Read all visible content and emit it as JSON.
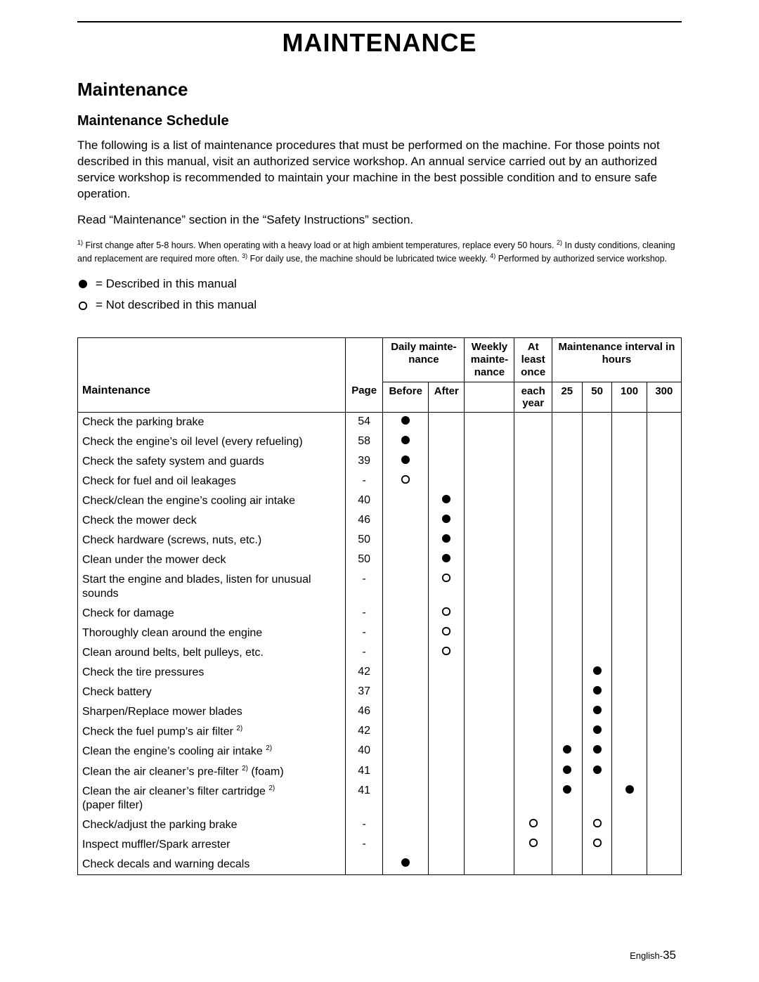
{
  "doc_title": "MAINTENANCE",
  "section_heading": "Maintenance",
  "sub_heading": "Maintenance Schedule",
  "intro_paragraph": "The following is a list of maintenance procedures that must be performed on the machine. For those points not described in this manual, visit an authorized service workshop. An annual service carried out by an authorized service workshop is recommended to maintain your machine in the best possible condition and to ensure safe operation.",
  "read_note": "Read “Maintenance” section in the “Safety Instructions” section.",
  "footnote_1_sup": "1)",
  "footnote_1": " First change after 5-8 hours. When operating with a heavy load or at high ambient temperatures, replace every 50 hours. ",
  "footnote_2_sup": "2)",
  "footnote_2": " In dusty conditions, cleaning and replacement are required more often. ",
  "footnote_3_sup": "3)",
  "footnote_3": " For daily use, the machine should be lubricated twice weekly. ",
  "footnote_4_sup": "4)",
  "footnote_4": " Performed by authorized service workshop.",
  "legend_filled": " = Described in this manual",
  "legend_open": " = Not described in this manual",
  "headers": {
    "daily": "Daily mainte-nance",
    "weekly": "Weekly mainte-nance",
    "atleast": "At least once",
    "interval": "Maintenance interval in hours",
    "maintenance": "Maintenance",
    "page": "Page",
    "before": "Before",
    "after": "After",
    "eachyear": "each\nyear",
    "h25": "25",
    "h50": "50",
    "h100": "100",
    "h300": "300"
  },
  "rows": [
    {
      "task": "Check the parking brake",
      "page": "54",
      "marks": {
        "before": "filled"
      }
    },
    {
      "task": "Check the engine’s oil level (every refueling)",
      "page": "58",
      "marks": {
        "before": "filled"
      }
    },
    {
      "task": "Check the safety system and guards",
      "page": "39",
      "marks": {
        "before": "filled"
      }
    },
    {
      "task": "Check for fuel and oil leakages",
      "page": "-",
      "marks": {
        "before": "open"
      }
    },
    {
      "task": "Check/clean the engine’s cooling air intake",
      "page": "40",
      "marks": {
        "after": "filled"
      }
    },
    {
      "task": "Check the mower deck",
      "page": "46",
      "marks": {
        "after": "filled"
      }
    },
    {
      "task": "Check hardware (screws, nuts, etc.)",
      "page": "50",
      "marks": {
        "after": "filled"
      }
    },
    {
      "task": "Clean under the mower deck",
      "page": "50",
      "marks": {
        "after": "filled"
      }
    },
    {
      "task": "Start the engine and blades, listen for unusual sounds",
      "page": "-",
      "marks": {
        "after": "open"
      }
    },
    {
      "task": "Check for damage",
      "page": "-",
      "marks": {
        "after": "open"
      }
    },
    {
      "task": "Thoroughly clean around the engine",
      "page": "-",
      "marks": {
        "after": "open"
      }
    },
    {
      "task": "Clean around belts, belt pulleys, etc.",
      "page": "-",
      "marks": {
        "after": "open"
      }
    },
    {
      "task": "Check the tire pressures",
      "page": "42",
      "marks": {
        "h50": "filled"
      }
    },
    {
      "task": "Check battery",
      "page": "37",
      "marks": {
        "h50": "filled"
      }
    },
    {
      "task": "Sharpen/Replace mower blades",
      "page": "46",
      "marks": {
        "h50": "filled"
      }
    },
    {
      "task": "Check the fuel pump’s air filter ",
      "sup": "2)",
      "page": "42",
      "marks": {
        "h50": "filled"
      }
    },
    {
      "task": "Clean the engine’s cooling air intake ",
      "sup": "2)",
      "page": "40",
      "marks": {
        "h25": "filled",
        "h50": "filled"
      }
    },
    {
      "task": "Clean the air cleaner’s pre-filter ",
      "sup": "2)",
      "suffix": " (foam)",
      "page": "41",
      "marks": {
        "h25": "filled",
        "h50": "filled"
      }
    },
    {
      "task": "Clean the air cleaner’s filter cartridge ",
      "sup": "2)",
      "suffix2": "(paper filter)",
      "page": "41",
      "marks": {
        "h25": "filled",
        "h100": "filled"
      }
    },
    {
      "task": "Check/adjust the parking brake",
      "page": "-",
      "marks": {
        "year": "open",
        "h50": "open"
      }
    },
    {
      "task": "Inspect muffler/Spark arrester",
      "page": "-",
      "marks": {
        "year": "open",
        "h50": "open"
      }
    },
    {
      "task": "Check decals and warning decals",
      "page": "",
      "marks": {
        "before": "filled"
      }
    }
  ],
  "page_label_prefix": "English-",
  "page_number": "35",
  "colors": {
    "text": "#000000",
    "background": "#ffffff",
    "border": "#000000"
  }
}
